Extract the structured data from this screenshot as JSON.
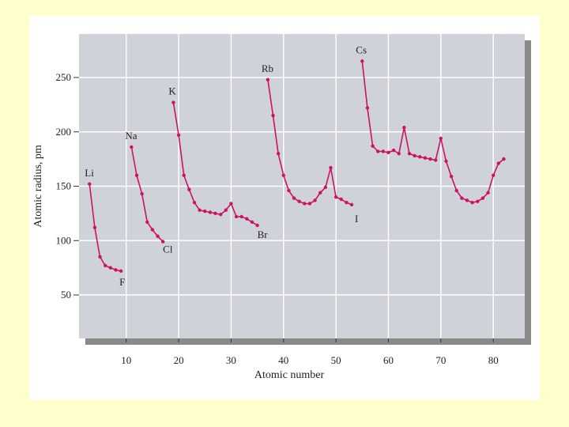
{
  "chart_data": {
    "type": "line",
    "title": "",
    "xlabel": "Atomic number",
    "ylabel": "Atomic radius, pm",
    "xlim": [
      1,
      86
    ],
    "ylim": [
      10,
      290
    ],
    "xticks": [
      10,
      20,
      30,
      40,
      50,
      60,
      70,
      80
    ],
    "yticks": [
      50,
      100,
      150,
      200,
      250
    ],
    "grid": true,
    "line_color": "#cc1166",
    "series": [
      {
        "points": [
          [
            3,
            152
          ],
          [
            4,
            112
          ],
          [
            5,
            85
          ],
          [
            6,
            77
          ],
          [
            7,
            75
          ],
          [
            8,
            73
          ],
          [
            9,
            72
          ],
          [
            11,
            186
          ],
          [
            12,
            160
          ],
          [
            13,
            143
          ],
          [
            14,
            117
          ],
          [
            15,
            110
          ],
          [
            16,
            104
          ],
          [
            17,
            99
          ],
          [
            19,
            227
          ],
          [
            20,
            197
          ],
          [
            21,
            160
          ],
          [
            22,
            147
          ],
          [
            23,
            135
          ],
          [
            24,
            128
          ],
          [
            25,
            127
          ],
          [
            26,
            126
          ],
          [
            27,
            125
          ],
          [
            28,
            124
          ],
          [
            29,
            128
          ],
          [
            30,
            134
          ],
          [
            31,
            122
          ],
          [
            32,
            122
          ],
          [
            33,
            120
          ],
          [
            34,
            117
          ],
          [
            35,
            114
          ],
          [
            37,
            248
          ],
          [
            38,
            215
          ],
          [
            39,
            180
          ],
          [
            40,
            160
          ],
          [
            41,
            146
          ],
          [
            42,
            139
          ],
          [
            43,
            136
          ],
          [
            44,
            134
          ],
          [
            45,
            134
          ],
          [
            46,
            137
          ],
          [
            47,
            144
          ],
          [
            48,
            149
          ],
          [
            49,
            167
          ],
          [
            50,
            140
          ],
          [
            51,
            138
          ],
          [
            52,
            135
          ],
          [
            53,
            133
          ],
          [
            55,
            265
          ],
          [
            56,
            222
          ],
          [
            57,
            187
          ],
          [
            58,
            182
          ],
          [
            59,
            182
          ],
          [
            60,
            181
          ],
          [
            61,
            183
          ],
          [
            62,
            180
          ],
          [
            63,
            204
          ],
          [
            64,
            180
          ],
          [
            65,
            178
          ],
          [
            66,
            177
          ],
          [
            67,
            176
          ],
          [
            68,
            175
          ],
          [
            69,
            174
          ],
          [
            70,
            194
          ],
          [
            71,
            173
          ],
          [
            72,
            159
          ],
          [
            73,
            146
          ],
          [
            74,
            139
          ],
          [
            75,
            137
          ],
          [
            76,
            135
          ],
          [
            77,
            136
          ],
          [
            78,
            139
          ],
          [
            79,
            144
          ],
          [
            80,
            160
          ],
          [
            81,
            171
          ],
          [
            82,
            175
          ]
        ]
      }
    ],
    "annotations": [
      {
        "text": "Li",
        "x": 3,
        "y": 152
      },
      {
        "text": "F",
        "x": 9,
        "y": 72
      },
      {
        "text": "Na",
        "x": 11,
        "y": 186
      },
      {
        "text": "Cl",
        "x": 17,
        "y": 99
      },
      {
        "text": "K",
        "x": 19,
        "y": 227
      },
      {
        "text": "Br",
        "x": 35,
        "y": 114
      },
      {
        "text": "Rb",
        "x": 37,
        "y": 248
      },
      {
        "text": "I",
        "x": 53,
        "y": 133
      },
      {
        "text": "Cs",
        "x": 55,
        "y": 265
      }
    ]
  }
}
